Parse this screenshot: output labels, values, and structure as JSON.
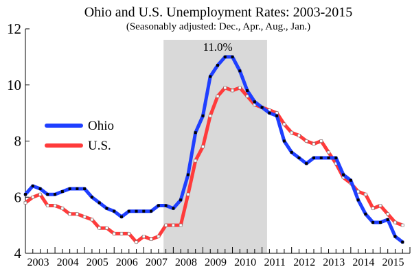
{
  "chart_data": {
    "type": "line",
    "title": "Ohio and U.S. Unemployment Rates: 2003-2015",
    "subtitle": "(Seasonably adjusted: Dec., Apr., Aug., Jan.)",
    "xlabel": "",
    "ylabel": "",
    "ylim": [
      4,
      12
    ],
    "yticks": [
      "4",
      "6",
      "8",
      "10",
      "12"
    ],
    "xlim": [
      2003,
      2016
    ],
    "xticks": [
      "2003",
      "2004",
      "2005",
      "2006",
      "2007",
      "2008",
      "2009",
      "2010",
      "2011",
      "2012",
      "2013",
      "2014",
      "2015"
    ],
    "recession_shading": {
      "start": 2007.67,
      "end": 2011.17,
      "color": "#d9d9d9"
    },
    "annotation": {
      "text": "11.0%",
      "x": 2009.92,
      "y": 11.0
    },
    "legend": {
      "placement": "left",
      "entries": [
        "Ohio",
        "U.S."
      ]
    },
    "grid": false,
    "series": [
      {
        "name": "Ohio",
        "color": "#1f3fff",
        "marker_color": "#000000",
        "x": [
          2003.0,
          2003.25,
          2003.5,
          2003.75,
          2004.0,
          2004.25,
          2004.5,
          2004.75,
          2005.0,
          2005.25,
          2005.5,
          2005.75,
          2006.0,
          2006.25,
          2006.5,
          2006.75,
          2007.0,
          2007.25,
          2007.5,
          2007.75,
          2008.0,
          2008.25,
          2008.5,
          2008.75,
          2009.0,
          2009.25,
          2009.5,
          2009.75,
          2010.0,
          2010.25,
          2010.5,
          2010.75,
          2011.0,
          2011.25,
          2011.5,
          2011.75,
          2012.0,
          2012.25,
          2012.5,
          2012.75,
          2013.0,
          2013.25,
          2013.5,
          2013.75,
          2014.0,
          2014.25,
          2014.5,
          2014.75,
          2015.0,
          2015.25,
          2015.5,
          2015.75
        ],
        "values": [
          6.1,
          6.4,
          6.3,
          6.1,
          6.1,
          6.2,
          6.3,
          6.3,
          6.3,
          6.0,
          5.8,
          5.6,
          5.5,
          5.3,
          5.5,
          5.5,
          5.5,
          5.5,
          5.7,
          5.7,
          5.6,
          5.9,
          6.8,
          8.3,
          8.9,
          10.3,
          10.7,
          11.0,
          11.0,
          10.5,
          9.8,
          9.4,
          9.2,
          9.0,
          8.9,
          8.0,
          7.6,
          7.4,
          7.2,
          7.4,
          7.4,
          7.4,
          7.4,
          6.8,
          6.6,
          5.9,
          5.4,
          5.1,
          5.1,
          5.2,
          4.6,
          4.4
        ]
      },
      {
        "name": "U.S.",
        "color": "#ff3b3b",
        "marker_color": "#ffffff",
        "x": [
          2003.0,
          2003.25,
          2003.5,
          2003.75,
          2004.0,
          2004.25,
          2004.5,
          2004.75,
          2005.0,
          2005.25,
          2005.5,
          2005.75,
          2006.0,
          2006.25,
          2006.5,
          2006.75,
          2007.0,
          2007.25,
          2007.5,
          2007.75,
          2008.0,
          2008.25,
          2008.5,
          2008.75,
          2009.0,
          2009.25,
          2009.5,
          2009.75,
          2010.0,
          2010.25,
          2010.5,
          2010.75,
          2011.0,
          2011.25,
          2011.5,
          2011.75,
          2012.0,
          2012.25,
          2012.5,
          2012.75,
          2013.0,
          2013.25,
          2013.5,
          2013.75,
          2014.0,
          2014.25,
          2014.5,
          2014.75,
          2015.0,
          2015.25,
          2015.5,
          2015.75
        ],
        "values": [
          5.8,
          6.0,
          6.1,
          5.7,
          5.7,
          5.6,
          5.4,
          5.4,
          5.3,
          5.2,
          4.9,
          4.9,
          4.7,
          4.7,
          4.7,
          4.4,
          4.6,
          4.5,
          4.6,
          5.0,
          5.0,
          5.0,
          6.1,
          7.3,
          7.8,
          8.9,
          9.6,
          9.9,
          9.8,
          9.9,
          9.6,
          9.3,
          9.2,
          9.1,
          9.0,
          8.6,
          8.3,
          8.2,
          8.0,
          7.9,
          8.0,
          7.6,
          7.2,
          6.7,
          6.5,
          6.2,
          6.1,
          5.6,
          5.7,
          5.4,
          5.1,
          5.0
        ]
      }
    ]
  }
}
